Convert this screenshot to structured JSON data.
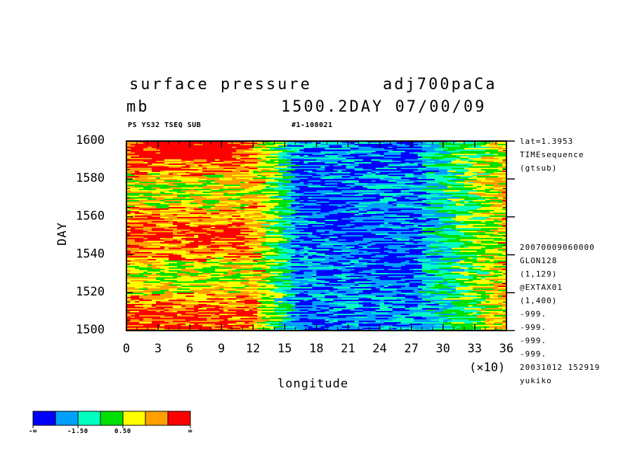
{
  "header": {
    "title_left": "surface pressure",
    "title_right": "adj700paCa",
    "unit": "mb",
    "time_info": "1500.2DAY 07/00/09",
    "sub_left": "PS YS32 TSEQ SUB",
    "sub_right": "#1-108021"
  },
  "side_info_top": [
    "lat=1.3953",
    "TIMEsequence",
    "(gtsub)"
  ],
  "side_info_bottom": [
    "20070009060000",
    "GLON128",
    "(1,129)",
    "@EXTAX01",
    "(1,400)",
    "-999.",
    "-999.",
    "-999.",
    "-999.",
    "20031012 152919",
    "yukiko"
  ],
  "colors": {
    "levels": [
      "#0000ff",
      "#00a0ff",
      "#00ffc0",
      "#00e000",
      "#ffff00",
      "#ffa000",
      "#ff0000"
    ],
    "frame": "#000000"
  },
  "colorbar": {
    "labels": [
      "-∞",
      "-1.50",
      "0.50",
      "∞"
    ]
  },
  "chart_data": {
    "type": "heatmap",
    "title": "surface pressure",
    "xlabel": "longitude",
    "ylabel": "DAY",
    "x_scale_note": "(×10)",
    "x_ticks": [
      "0",
      "3",
      "6",
      "9",
      "12",
      "15",
      "18",
      "21",
      "24",
      "27",
      "30",
      "33",
      "36"
    ],
    "y_ticks": [
      "1500",
      "1520",
      "1540",
      "1560",
      "1580",
      "1600"
    ],
    "xlim": [
      0,
      36
    ],
    "ylim": [
      1500,
      1600
    ],
    "regions_by_longitude": [
      {
        "x_range": [
          0,
          12
        ],
        "dominant_level": "high (orange/red)"
      },
      {
        "x_range": [
          12,
          16
        ],
        "dominant_level": "mid (green/yellow)"
      },
      {
        "x_range": [
          16,
          28
        ],
        "dominant_level": "low (blue)"
      },
      {
        "x_range": [
          28,
          36
        ],
        "dominant_level": "mid-high (yellow/orange)"
      }
    ]
  }
}
